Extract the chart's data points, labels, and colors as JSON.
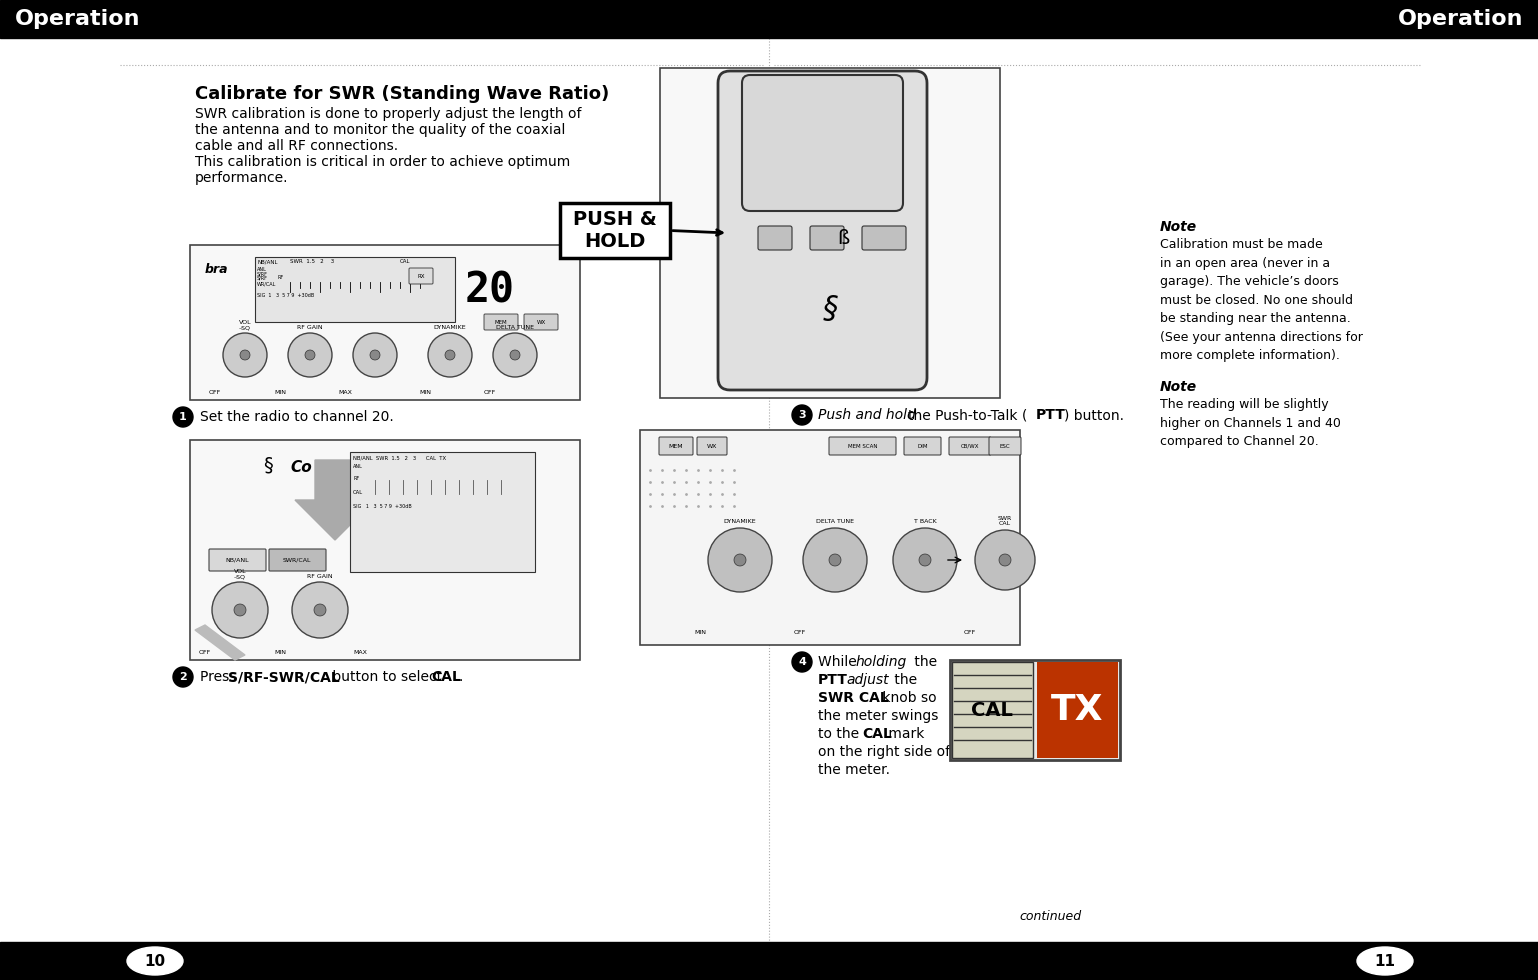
{
  "bg_color": "#ffffff",
  "header_bg": "#000000",
  "header_text_color": "#ffffff",
  "header_text_left": "Operation",
  "header_text_right": "Operation",
  "footer_bg": "#000000",
  "page_num_left": "10",
  "page_num_right": "11",
  "title": "Calibrate for SWR (Standing Wave Ratio)",
  "body_line1": "SWR calibration is done to properly adjust the length of",
  "body_line2": "the antenna and to monitor the quality of the coaxial",
  "body_line3": "cable and all RF connections.",
  "body_line4": "This calibration is critical in order to achieve optimum",
  "body_line5": "performance.",
  "step1_text": "Set the radio to channel 20.",
  "step2_pre": "Press ",
  "step2_bold": "S/RF-SWR/CAL",
  "step2_mid": " button to select ",
  "step2_bold2": "CAL",
  "step2_end": ".",
  "step3_italic": "Push and hold",
  "step3_rest": " the Push-to-Talk (",
  "step3_bold": "PTT",
  "step3_end": ") button.",
  "step4_line1_a": "While ",
  "step4_line1_b": "holding",
  "step4_line1_c": " the",
  "step4_line2_a": "PTT",
  "step4_line2_b": " ",
  "step4_line2_c": "adjust",
  "step4_line2_d": " the",
  "step4_line3_a": "SWR CAL",
  "step4_line3_b": " knob so",
  "step4_line4": "the meter swings",
  "step4_line5_a": "to the ",
  "step4_line5_b": "CAL",
  "step4_line5_c": " mark",
  "step4_line6": "on the right side of",
  "step4_line7": "the meter.",
  "push_hold": "PUSH &\nHOLD",
  "note1_title": "Note",
  "note1_body": "Calibration must be made\nin an open area (never in a\ngarage). The vehicle’s doors\nmust be closed. No one should\nbe standing near the antenna.\n(See your antenna directions for\nmore complete information).",
  "note2_title": "Note",
  "note2_body": "The reading will be slightly\nhigher on Channels 1 and 40\ncompared to Channel 20.",
  "continued": "continued",
  "divider_color": "#aaaaaa",
  "header_fontsize": 16,
  "title_fontsize": 13,
  "body_fontsize": 10,
  "step_fontsize": 10,
  "note_title_fontsize": 10,
  "note_body_fontsize": 9
}
